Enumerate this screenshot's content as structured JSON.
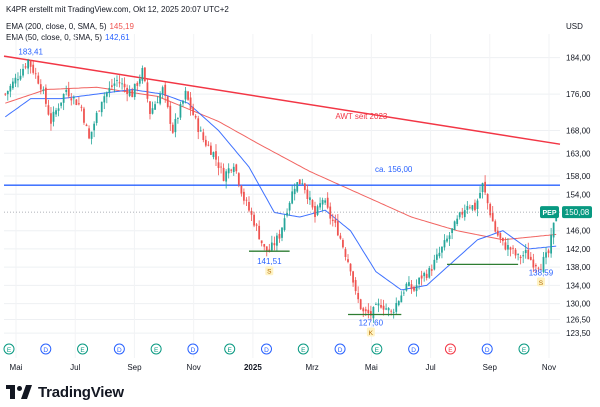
{
  "header": {
    "created_line": "K4PR erstellt mit TradingView.com, Okt 12, 2025 20:07 UTC+2",
    "ema200_label": "EMA (200, close, 0, SMA, 5)",
    "ema200_value": "145,19",
    "ema50_label": "EMA (50, close, 0, SMA, 5)",
    "ema50_value": "142,61",
    "currency": "USD"
  },
  "brand": "TradingView",
  "colors": {
    "up": "#26a69a",
    "down": "#ef5350",
    "ema200": "#ef5350",
    "ema50": "#2962ff",
    "trendline": "#f23645",
    "horizontal": "#2962ff",
    "support": "#2e7d32",
    "price_badge": "#089981"
  },
  "chart_data": {
    "type": "candlestick",
    "ylim": [
      122,
      187
    ],
    "x_labels": [
      "Mai",
      "Jul",
      "Sep",
      "Nov",
      "2025",
      "Mrz",
      "Mai",
      "Jul",
      "Sep",
      "Nov"
    ],
    "y_ticks": [
      "184,00",
      "176,00",
      "168,00",
      "163,00",
      "158,00",
      "154,00",
      "146,00",
      "142,00",
      "138,00",
      "134,00",
      "130,00",
      "126,50",
      "123,50"
    ],
    "y_tick_values": [
      184,
      176,
      168,
      163,
      158,
      154,
      146,
      142,
      138,
      134,
      130,
      126.5,
      123.5
    ],
    "last_price": "150,08",
    "last_price_value": 150.08,
    "annotations": [
      {
        "text": "183,41",
        "value": 183.41
      },
      {
        "text": "141,51",
        "value": 141.51
      },
      {
        "text": "127,60",
        "value": 127.6
      },
      {
        "text": "138,59",
        "value": 138.59
      },
      {
        "text": "ca. 156,00",
        "value": 156.0
      },
      {
        "text": "AWT seit 2023"
      }
    ],
    "event_markers": [
      {
        "type": "E",
        "period": 0
      },
      {
        "type": "D",
        "period": 1
      },
      {
        "type": "E",
        "period": 2
      },
      {
        "type": "D",
        "period": 3
      },
      {
        "type": "E",
        "period": 4
      },
      {
        "type": "D",
        "period": 5
      },
      {
        "type": "E",
        "period": 6
      },
      {
        "type": "D",
        "period": 7
      },
      {
        "type": "E",
        "period": 8
      },
      {
        "type": "D",
        "period": 9
      },
      {
        "type": "E",
        "period": 10
      },
      {
        "type": "D",
        "period": 11
      },
      {
        "type": "E",
        "period": 12
      },
      {
        "type": "D",
        "period": 13
      },
      {
        "type": "E",
        "period": 14
      }
    ],
    "price_path": [
      [
        0,
        176
      ],
      [
        5,
        180
      ],
      [
        9,
        183.4
      ],
      [
        14,
        178
      ],
      [
        18,
        170
      ],
      [
        24,
        177
      ],
      [
        30,
        173
      ],
      [
        33,
        166
      ],
      [
        38,
        175
      ],
      [
        44,
        179
      ],
      [
        50,
        176
      ],
      [
        54,
        181
      ],
      [
        57,
        172
      ],
      [
        62,
        177
      ],
      [
        66,
        168
      ],
      [
        71,
        176
      ],
      [
        75,
        170
      ],
      [
        78,
        166
      ],
      [
        82,
        163
      ],
      [
        86,
        158
      ],
      [
        90,
        161
      ],
      [
        94,
        153
      ],
      [
        98,
        148
      ],
      [
        102,
        142
      ],
      [
        104,
        141.5
      ],
      [
        108,
        145
      ],
      [
        111,
        151
      ],
      [
        114,
        156
      ],
      [
        117,
        157
      ],
      [
        119,
        154
      ],
      [
        122,
        149
      ],
      [
        125,
        153
      ],
      [
        128,
        149
      ],
      [
        131,
        146
      ],
      [
        134,
        141
      ],
      [
        136,
        138
      ],
      [
        138,
        132
      ],
      [
        141,
        128
      ],
      [
        144,
        127.6
      ],
      [
        148,
        130
      ],
      [
        152,
        128
      ],
      [
        155,
        131
      ],
      [
        158,
        134
      ],
      [
        161,
        133
      ],
      [
        164,
        136
      ],
      [
        167,
        137
      ],
      [
        170,
        140
      ],
      [
        173,
        143
      ],
      [
        176,
        146
      ],
      [
        179,
        149
      ],
      [
        182,
        152
      ],
      [
        185,
        151
      ],
      [
        188,
        156
      ],
      [
        191,
        150
      ],
      [
        193,
        146
      ],
      [
        196,
        143
      ],
      [
        199,
        142
      ],
      [
        202,
        140
      ],
      [
        205,
        141
      ],
      [
        208,
        139
      ],
      [
        211,
        138.6
      ],
      [
        214,
        141
      ],
      [
        217,
        150
      ]
    ],
    "ema200_path": [
      [
        0,
        174
      ],
      [
        16,
        177
      ],
      [
        36,
        177.5
      ],
      [
        60,
        175.5
      ],
      [
        84,
        170
      ],
      [
        100,
        165
      ],
      [
        120,
        159
      ],
      [
        140,
        154
      ],
      [
        160,
        149
      ],
      [
        178,
        146
      ],
      [
        196,
        144
      ],
      [
        217,
        145.19
      ]
    ],
    "ema50_path": [
      [
        0,
        171
      ],
      [
        10,
        175
      ],
      [
        22,
        175
      ],
      [
        36,
        176
      ],
      [
        50,
        177
      ],
      [
        62,
        176
      ],
      [
        72,
        174
      ],
      [
        84,
        168
      ],
      [
        96,
        160
      ],
      [
        106,
        150
      ],
      [
        116,
        149
      ],
      [
        126,
        150.5
      ],
      [
        136,
        146
      ],
      [
        146,
        137
      ],
      [
        156,
        133
      ],
      [
        166,
        134
      ],
      [
        176,
        139
      ],
      [
        186,
        144
      ],
      [
        196,
        146
      ],
      [
        206,
        142
      ],
      [
        217,
        142.61
      ]
    ],
    "trendline": [
      [
        10,
        183.4
      ],
      [
        217,
        165
      ]
    ],
    "horizontal_level": 156.0,
    "support_levels": [
      {
        "value": 141.5,
        "from": 96,
        "to": 112,
        "letter": "S"
      },
      {
        "value": 127.6,
        "from": 135,
        "to": 156,
        "letter": "K"
      },
      {
        "value": 138.6,
        "from": 174,
        "to": 202,
        "letter": "S"
      }
    ]
  }
}
